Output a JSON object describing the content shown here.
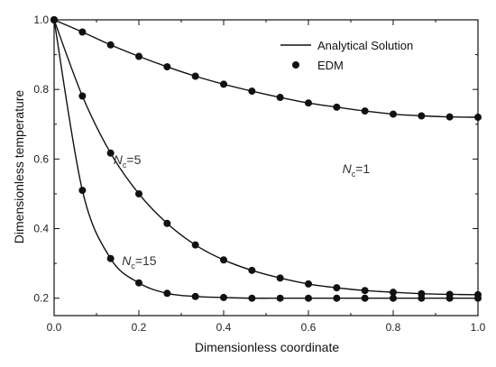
{
  "chart_data": {
    "type": "line",
    "title": "",
    "xlabel": "Dimensionless coordinate",
    "ylabel": "Dimensionless temperature",
    "xlim": [
      0.0,
      1.0
    ],
    "ylim": [
      0.15,
      1.0
    ],
    "xticks": [
      "0.0",
      "0.2",
      "0.4",
      "0.6",
      "0.8",
      "1.0"
    ],
    "yticks": [
      "0.2",
      "0.4",
      "0.6",
      "0.8",
      "1.0"
    ],
    "grid": false,
    "legend": {
      "position": "top-right",
      "entries": [
        {
          "label": "Analytical Solution",
          "marker": "line"
        },
        {
          "label": "EDM",
          "marker": "circle"
        }
      ]
    },
    "x": [
      0,
      0.0667,
      0.1333,
      0.2,
      0.2667,
      0.3333,
      0.4,
      0.4667,
      0.5333,
      0.6,
      0.6667,
      0.7333,
      0.8,
      0.8667,
      0.9333,
      1.0
    ],
    "series": [
      {
        "annotation": {
          "N": "N",
          "sub": "c",
          "value": "=1"
        },
        "values": [
          1.0,
          0.965,
          0.928,
          0.895,
          0.865,
          0.838,
          0.815,
          0.795,
          0.777,
          0.761,
          0.749,
          0.738,
          0.729,
          0.724,
          0.721,
          0.72
        ]
      },
      {
        "annotation": {
          "N": "N",
          "sub": "c",
          "value": "=5"
        },
        "values": [
          1.0,
          0.781,
          0.617,
          0.5,
          0.415,
          0.353,
          0.31,
          0.28,
          0.258,
          0.241,
          0.23,
          0.222,
          0.217,
          0.213,
          0.211,
          0.21
        ]
      },
      {
        "annotation": {
          "N": "N",
          "sub": "c",
          "value": "=15"
        },
        "values": [
          1.0,
          0.51,
          0.314,
          0.244,
          0.214,
          0.205,
          0.202,
          0.2,
          0.2,
          0.2,
          0.2,
          0.2,
          0.2,
          0.2,
          0.2,
          0.2
        ]
      }
    ]
  },
  "colors": {
    "line": "#111111",
    "marker": "#111111",
    "axis": "#111111"
  }
}
